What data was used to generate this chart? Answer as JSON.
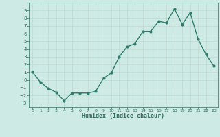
{
  "x": [
    0,
    1,
    2,
    3,
    4,
    5,
    6,
    7,
    8,
    9,
    10,
    11,
    12,
    13,
    14,
    15,
    16,
    17,
    18,
    19,
    20,
    21,
    22,
    23
  ],
  "y": [
    1,
    -0.3,
    -1.1,
    -1.6,
    -2.7,
    -1.7,
    -1.7,
    -1.7,
    -1.5,
    0.2,
    0.9,
    3.0,
    4.3,
    4.7,
    6.3,
    6.3,
    7.6,
    7.4,
    9.2,
    7.2,
    8.7,
    5.3,
    3.3,
    1.8
  ],
  "line_color": "#2e7d6e",
  "marker": "o",
  "marker_size": 2,
  "linewidth": 1.0,
  "xlabel": "Humidex (Indice chaleur)",
  "xlabel_fontsize": 6,
  "ylim": [
    -3.5,
    10
  ],
  "xlim": [
    -0.5,
    23.5
  ],
  "yticks": [
    -3,
    -2,
    -1,
    0,
    1,
    2,
    3,
    4,
    5,
    6,
    7,
    8,
    9
  ],
  "xticks": [
    0,
    1,
    2,
    3,
    4,
    5,
    6,
    7,
    8,
    9,
    10,
    11,
    12,
    13,
    14,
    15,
    16,
    17,
    18,
    19,
    20,
    21,
    22,
    23
  ],
  "bg_color": "#ceeae4",
  "grid_color": "#c0d8d0",
  "tick_color": "#2e6e5e",
  "label_color": "#2e6e5e",
  "spine_color": "#2e6e5e"
}
